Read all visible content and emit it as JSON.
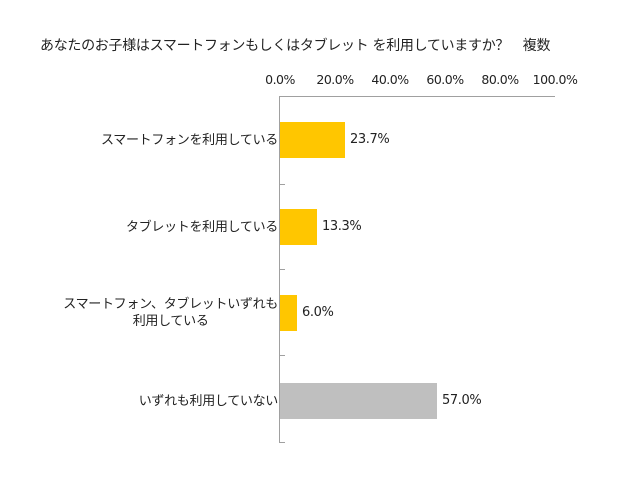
{
  "chart_data": {
    "type": "bar",
    "orientation": "horizontal",
    "title": "あなたのお子様はスマートフォンもしくはタブレット を利用していますか？　複数",
    "categories": [
      "スマートフォンを利用している",
      "タブレットを利用している",
      "スマートフォン、タブレットいずれも利用している",
      "いずれも利用していない"
    ],
    "category_lines": [
      [
        "スマートフォンを利用している"
      ],
      [
        "タブレットを利用している"
      ],
      [
        "スマートフォン、タブレットいずれも",
        "利用している"
      ],
      [
        "いずれも利用していない"
      ]
    ],
    "values": [
      23.7,
      13.3,
      6.0,
      57.0
    ],
    "value_labels": [
      "23.7%",
      "13.3%",
      "6.0%",
      "57.0%"
    ],
    "bar_colors": [
      "#ffc600",
      "#ffc600",
      "#ffc600",
      "#bfbfbf"
    ],
    "xlabel": "",
    "ylabel": "",
    "xlim": [
      0,
      100
    ],
    "x_ticks": [
      "0.0%",
      "20.0%",
      "40.0%",
      "60.0%",
      "80.0%",
      "100.0%"
    ],
    "x_axis_position": "top",
    "grid": false,
    "legend": null
  }
}
